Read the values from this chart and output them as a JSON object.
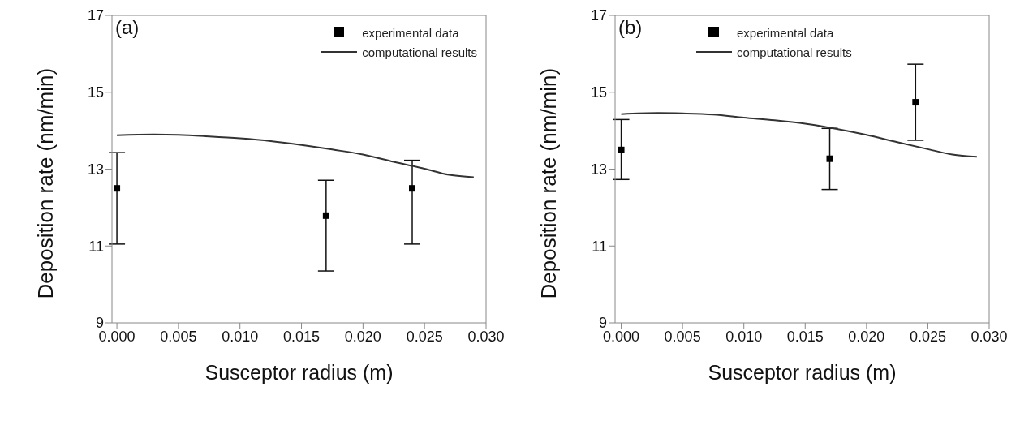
{
  "chart_data": [
    {
      "type": "scatter",
      "annotations": [
        "(a)"
      ],
      "xlabel": "Susceptor radius (m)",
      "ylabel": "Deposition rate (nm/min)",
      "xlim": [
        -0.0004,
        0.03
      ],
      "ylim": [
        9,
        17
      ],
      "xticks": [
        {
          "value": 0,
          "label": "0.000"
        },
        {
          "value": 0.005,
          "label": "0.005"
        },
        {
          "value": 0.01,
          "label": "0.010"
        },
        {
          "value": 0.015,
          "label": "0.015"
        },
        {
          "value": 0.02,
          "label": "0.020"
        },
        {
          "value": 0.025,
          "label": "0.025"
        },
        {
          "value": 0.03,
          "label": "0.030"
        }
      ],
      "yticks": [
        9,
        11,
        13,
        15,
        17
      ],
      "grid": false,
      "legend": "top right",
      "series": [
        {
          "name": "experimental data",
          "marker": "square",
          "color": "#000000",
          "x": [
            0,
            0.017,
            0.024
          ],
          "values": [
            12.5,
            11.79,
            12.5
          ],
          "errors": [
            [
              11.05,
              13.43
            ],
            [
              10.35,
              12.71
            ],
            [
              11.05,
              13.23
            ]
          ]
        },
        {
          "name": "computational results",
          "type": "line",
          "marker": "none",
          "line_style": "solid",
          "color": "#333333",
          "x": [
            0,
            0.003,
            0.005,
            0.0075,
            0.01,
            0.0125,
            0.015,
            0.0175,
            0.02,
            0.0225,
            0.025,
            0.027,
            0.029
          ],
          "values": [
            13.88,
            13.9,
            13.89,
            13.85,
            13.8,
            13.73,
            13.63,
            13.51,
            13.38,
            13.19,
            13.01,
            12.85,
            12.79
          ]
        }
      ]
    },
    {
      "type": "scatter",
      "annotations": [
        "(b)"
      ],
      "xlabel": "Susceptor radius (m)",
      "ylabel": "Deposition rate (nm/min)",
      "xlim": [
        -0.0005,
        0.03
      ],
      "ylim": [
        9,
        17
      ],
      "xticks": [
        {
          "value": 0,
          "label": "0.000"
        },
        {
          "value": 0.005,
          "label": "0.005"
        },
        {
          "value": 0.01,
          "label": "0.010"
        },
        {
          "value": 0.015,
          "label": "0.015"
        },
        {
          "value": 0.02,
          "label": "0.020"
        },
        {
          "value": 0.025,
          "label": "0.025"
        },
        {
          "value": 0.03,
          "label": "0.030"
        }
      ],
      "yticks": [
        9,
        11,
        13,
        15,
        17
      ],
      "grid": false,
      "legend": "top",
      "series": [
        {
          "name": "experimental data",
          "marker": "square",
          "color": "#000000",
          "x": [
            0,
            0.017,
            0.024
          ],
          "values": [
            13.5,
            13.27,
            14.74
          ],
          "errors": [
            [
              12.73,
              14.29
            ],
            [
              12.47,
              14.06
            ],
            [
              13.75,
              15.73
            ]
          ]
        },
        {
          "name": "computational results",
          "type": "line",
          "marker": "none",
          "line_style": "solid",
          "color": "#333333",
          "x": [
            0,
            0.003,
            0.005,
            0.0075,
            0.01,
            0.0125,
            0.015,
            0.0175,
            0.02,
            0.0225,
            0.025,
            0.027,
            0.029
          ],
          "values": [
            14.43,
            14.46,
            14.45,
            14.42,
            14.34,
            14.27,
            14.18,
            14.05,
            13.89,
            13.7,
            13.52,
            13.38,
            13.32
          ]
        }
      ]
    }
  ]
}
